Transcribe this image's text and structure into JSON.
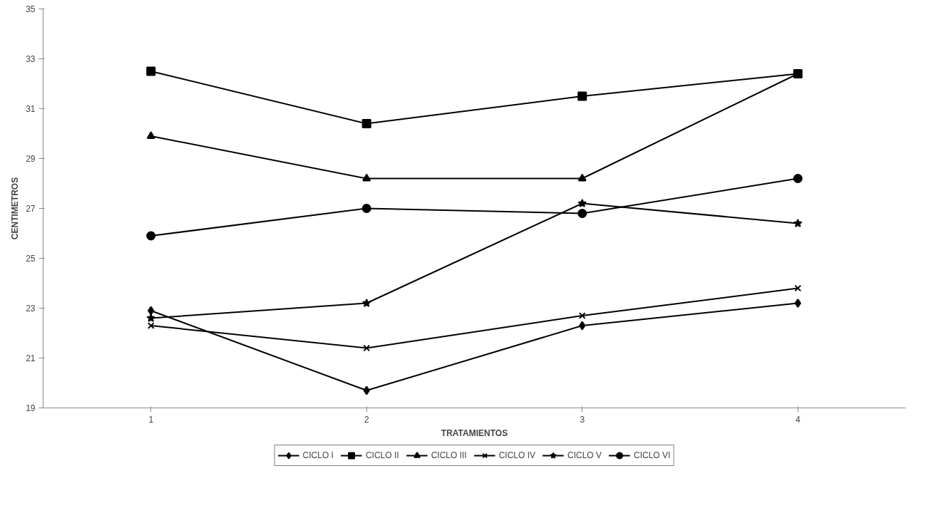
{
  "chart_data": {
    "type": "line",
    "xlabel": "TRATAMIENTOS",
    "ylabel": "CENTIMETROS",
    "categories": [
      "1",
      "2",
      "3",
      "4"
    ],
    "ylim": [
      19,
      35
    ],
    "yticks": [
      19,
      21,
      23,
      25,
      27,
      29,
      31,
      33,
      35
    ],
    "grid": false,
    "legend": "bottom",
    "series": [
      {
        "name": "CICLO I",
        "color": "#000000",
        "marker": "diamond",
        "values": [
          22.9,
          19.7,
          22.3,
          23.2
        ]
      },
      {
        "name": "CICLO II",
        "color": "#000000",
        "marker": "square",
        "values": [
          32.5,
          30.4,
          31.5,
          32.4
        ]
      },
      {
        "name": "CICLO III",
        "color": "#000000",
        "marker": "triangle",
        "values": [
          29.9,
          28.2,
          28.2,
          32.4
        ]
      },
      {
        "name": "CICLO IV",
        "color": "#000000",
        "marker": "cross",
        "values": [
          22.3,
          21.4,
          22.7,
          23.8
        ]
      },
      {
        "name": "CICLO V",
        "color": "#000000",
        "marker": "star",
        "values": [
          22.6,
          23.2,
          27.2,
          26.4
        ]
      },
      {
        "name": "CICLO VI",
        "color": "#000000",
        "marker": "circle",
        "values": [
          25.9,
          27.0,
          26.8,
          28.2
        ]
      }
    ]
  }
}
